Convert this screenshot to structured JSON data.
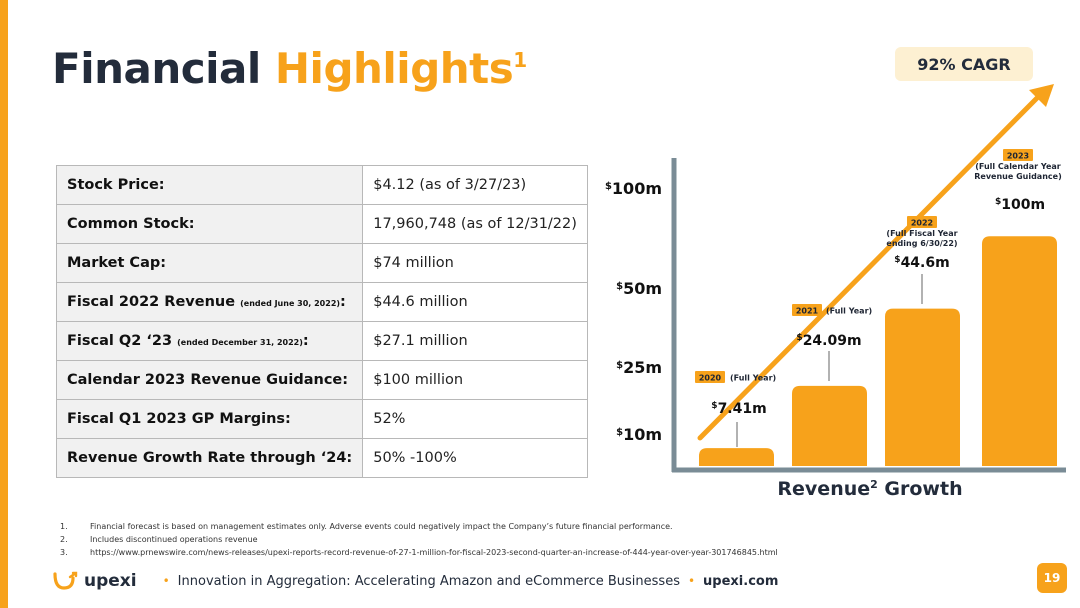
{
  "title": {
    "part1": "Financial",
    "part2": "Highlights",
    "sup": "1"
  },
  "table": [
    {
      "key": "Stock Price:",
      "note": "",
      "colon": "",
      "value": "$4.12 (as of 3/27/23)"
    },
    {
      "key": "Common Stock:",
      "note": "",
      "colon": "",
      "value": "17,960,748 (as of 12/31/22)"
    },
    {
      "key": "Market Cap:",
      "note": "",
      "colon": "",
      "value": "$74 million"
    },
    {
      "key": "Fiscal 2022 Revenue",
      "note": "(ended June 30, 2022)",
      "colon": ":",
      "value": "$44.6 million"
    },
    {
      "key": "Fiscal Q2 ‘23",
      "note": "(ended December 31, 2022)",
      "colon": ":",
      "value": "$27.1 million"
    },
    {
      "key": "Calendar 2023 Revenue Guidance:",
      "note": "",
      "colon": "",
      "value": "$100 million"
    },
    {
      "key": "Fiscal Q1 2023 GP Margins:",
      "note": "",
      "colon": "",
      "value": "52%"
    },
    {
      "key": "Revenue Growth Rate through ‘24:",
      "note": "",
      "colon": "",
      "value": "50% -100%"
    }
  ],
  "cagr": "92% CAGR",
  "chart_data": {
    "type": "bar",
    "title": "Revenue",
    "title_sup": "2",
    "title_rest": " Growth",
    "y_ticks": [
      {
        "sup": "$",
        "label": "100m",
        "value": 100
      },
      {
        "sup": "$",
        "label": "50m",
        "value": 50
      },
      {
        "sup": "$",
        "label": "25m",
        "value": 25
      },
      {
        "sup": "$",
        "label": "10m",
        "value": 10
      }
    ],
    "bars": [
      {
        "year": "2020",
        "desc": "(Full Year)",
        "desc_lines": [],
        "value": 7.41,
        "sup": "$",
        "label": "7.41m"
      },
      {
        "year": "2021",
        "desc": "(Full Year)",
        "desc_lines": [],
        "value": 24.09,
        "sup": "$",
        "label": "24.09m"
      },
      {
        "year": "2022",
        "desc": "",
        "desc_lines": [
          "(Full Fiscal Year",
          "ending 6/30/22)"
        ],
        "value": 44.6,
        "sup": "$",
        "label": "44.6m"
      },
      {
        "year": "2023",
        "desc": "",
        "desc_lines": [
          "(Full Calendar Year",
          "Revenue Guidance)"
        ],
        "value": 100,
        "sup": "$",
        "label": "100m"
      }
    ]
  },
  "footnotes": [
    {
      "num": "1.",
      "text": "Financial forecast is based on management estimates only. Adverse events could negatively impact the Company’s future financial performance."
    },
    {
      "num": "2.",
      "text": "Includes discontinued operations revenue"
    },
    {
      "num": "3.",
      "text": "https://www.prnewswire.com/news-releases/upexi-reports-record-revenue-of-27-1-million-for-fiscal-2023-second-quarter-an-increase-of-444-year-over-year-301746845.html"
    }
  ],
  "footer": {
    "logo": "upexi",
    "tagline": "Innovation in Aggregation: Accelerating Amazon and eCommerce Businesses",
    "website": "upexi.com",
    "page": "19"
  },
  "colors": {
    "accent": "#f7a21b",
    "navy": "#232c3b",
    "axis": "#7a8c96"
  }
}
